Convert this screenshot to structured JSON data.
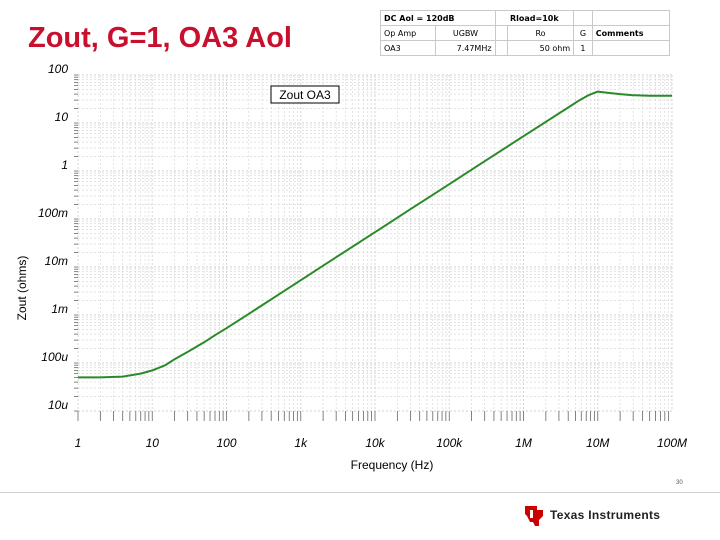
{
  "slide": {
    "title": "Zout, G=1, OA3 Aol",
    "page_number": "30",
    "logo_text": "Texas Instruments"
  },
  "table": {
    "row1": {
      "dc_aol": "DC Aol = 120dB",
      "rload": "Rload=10k"
    },
    "row2": {
      "op_amp": "Op Amp",
      "ugbw": "UGBW",
      "ro": "Ro",
      "g": "G",
      "comments": "Comments"
    },
    "row3": {
      "op_amp": "OA3",
      "ugbw": "7.47MHz",
      "ro": "50 ohm",
      "g": "1",
      "comments": ""
    }
  },
  "chart_data": {
    "type": "line",
    "xscale": "log",
    "yscale": "log",
    "xlabel": "Frequency (Hz)",
    "ylabel": "Zout (ohms)",
    "xlim": [
      1,
      100000000
    ],
    "ylim": [
      1e-05,
      100
    ],
    "xticks": [
      1,
      10,
      100,
      1000,
      10000,
      100000,
      1000000,
      10000000,
      100000000
    ],
    "xtick_labels": [
      "1",
      "10",
      "100",
      "1k",
      "10k",
      "100k",
      "1M",
      "10M",
      "100M"
    ],
    "yticks": [
      1e-05,
      0.0001,
      0.001,
      0.01,
      0.1,
      1,
      10,
      100
    ],
    "ytick_labels": [
      "10u",
      "100u",
      "1m",
      "10m",
      "100m",
      "1",
      "10",
      "100"
    ],
    "grid": true,
    "annotation": "Zout OA3",
    "line_color": "#2a8a2a",
    "series": [
      {
        "name": "Zout OA3",
        "x": [
          1,
          2,
          4,
          7,
          10,
          15,
          20,
          30,
          50,
          70,
          100,
          200,
          500,
          1000,
          3000,
          10000,
          30000,
          100000,
          300000,
          1000000,
          2000000,
          4000000,
          5500000,
          7500000,
          10000000,
          15000000,
          20000000,
          30000000,
          50000000,
          70000000,
          100000000
        ],
        "y": [
          5e-05,
          5e-05,
          5.2e-05,
          6e-05,
          7e-05,
          9e-05,
          0.00012,
          0.00017,
          0.00027,
          0.00038,
          0.00053,
          0.00106,
          0.00265,
          0.0053,
          0.016,
          0.053,
          0.16,
          0.53,
          1.6,
          5.3,
          10.6,
          21,
          29,
          38,
          45,
          42,
          40,
          38,
          37,
          37,
          37
        ]
      }
    ]
  },
  "colors": {
    "title": "#c8102e",
    "grid": "#d2d2d2",
    "line": "#2a8a2a",
    "logo_red": "#cc0000"
  }
}
